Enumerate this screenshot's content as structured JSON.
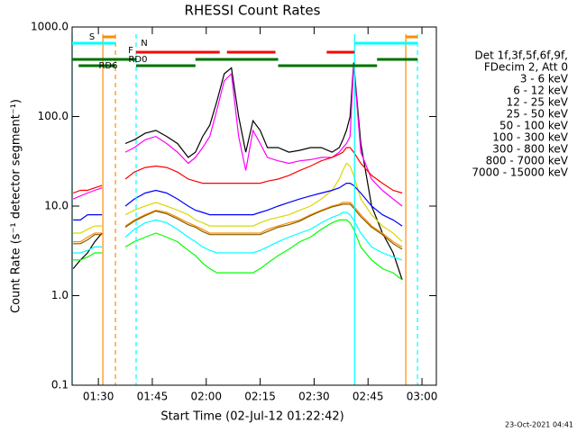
{
  "chart_data": {
    "type": "line",
    "title": "RHESSI Count Rates",
    "x_label": "Start Time (02-Jul-12 01:22:42)",
    "y_label": "Count Rate (s⁻¹ detector segment⁻¹)",
    "footer": "23-Oct-2021 04:41",
    "legend_header": [
      "Det 1f,3f,5f,6f,9f,",
      "FDecim 2, Att 0"
    ],
    "log_y": true,
    "xlim": [
      82.7,
      184
    ],
    "ylim": [
      0.1,
      1000
    ],
    "xticks": [
      {
        "value": 90,
        "label": "01:30"
      },
      {
        "value": 105,
        "label": "01:45"
      },
      {
        "value": 120,
        "label": "02:00"
      },
      {
        "value": 135,
        "label": "02:15"
      },
      {
        "value": 150,
        "label": "02:30"
      },
      {
        "value": 165,
        "label": "02:45"
      },
      {
        "value": 180,
        "label": "03:00"
      }
    ],
    "yticks": [
      0.1,
      {
        "value": 1,
        "label": "1.0"
      },
      {
        "value": 10,
        "label": "10.0"
      },
      {
        "value": 100,
        "label": "100.0"
      },
      {
        "value": 1000,
        "label": "1000.0"
      }
    ],
    "x": [
      83,
      85,
      87,
      89,
      91,
      93,
      97.5,
      100,
      103,
      106,
      109,
      112,
      115,
      117,
      119,
      121,
      123,
      125,
      127,
      129,
      131,
      133,
      135,
      137,
      140,
      143,
      146,
      149,
      152,
      155,
      157,
      158,
      159,
      160,
      161,
      163,
      166,
      169,
      172,
      174.5
    ],
    "series": [
      {
        "name": "3 - 6 keV",
        "color": "#000000",
        "values": [
          2,
          2.5,
          3,
          4,
          5,
          null,
          50,
          55,
          65,
          70,
          60,
          50,
          35,
          40,
          60,
          80,
          150,
          300,
          350,
          100,
          40,
          90,
          70,
          45,
          45,
          40,
          42,
          45,
          45,
          40,
          45,
          55,
          70,
          100,
          400,
          50,
          10,
          5,
          3,
          1.5
        ]
      },
      {
        "name": "6 - 12 keV",
        "color": "#ff00ff",
        "values": [
          12,
          13,
          14,
          15,
          16,
          null,
          40,
          45,
          55,
          60,
          50,
          40,
          30,
          35,
          45,
          60,
          120,
          250,
          300,
          60,
          25,
          70,
          50,
          35,
          32,
          30,
          32,
          33,
          35,
          35,
          40,
          45,
          50,
          60,
          380,
          40,
          20,
          15,
          12,
          10
        ]
      },
      {
        "name": "12 - 25 keV",
        "color": "#00ff00",
        "values": [
          2.5,
          2.5,
          2.7,
          3,
          3,
          null,
          3.5,
          4,
          4.5,
          5,
          4.5,
          4,
          3.2,
          2.8,
          2.3,
          2,
          1.8,
          1.8,
          1.8,
          1.8,
          1.8,
          1.8,
          2,
          2.3,
          2.8,
          3.3,
          4,
          4.5,
          5.5,
          6.5,
          7,
          7,
          7,
          6.5,
          5.5,
          3.5,
          2.5,
          2,
          1.8,
          1.5
        ]
      },
      {
        "name": "25 - 50 keV",
        "color": "#00ffff",
        "values": [
          3,
          3,
          3.2,
          3.5,
          3.5,
          null,
          4.5,
          5.5,
          6.5,
          7,
          6.5,
          5.5,
          4.5,
          4,
          3.5,
          3.2,
          3,
          3,
          3,
          3,
          3,
          3,
          3.2,
          3.5,
          4,
          4.5,
          5,
          5.5,
          6.5,
          7.5,
          8,
          8.5,
          8.5,
          8,
          7,
          5,
          3.5,
          3,
          2.7,
          2.5
        ]
      },
      {
        "name": "50 - 100 keV",
        "color": "#d8d800",
        "values": [
          5,
          5,
          5.5,
          6,
          6,
          null,
          8,
          9,
          10,
          11,
          10,
          9,
          8,
          7,
          6.5,
          6,
          6,
          6,
          6,
          6,
          6,
          6,
          6.5,
          7,
          7.5,
          8,
          9,
          10,
          12,
          15,
          20,
          25,
          30,
          28,
          22,
          12,
          8,
          6,
          5,
          4
        ]
      },
      {
        "name": "100 - 300 keV",
        "color": "#ff0000",
        "values": [
          14,
          15,
          15,
          16,
          17,
          null,
          20,
          24,
          27,
          28,
          27,
          24,
          20,
          19,
          18,
          18,
          18,
          18,
          18,
          18,
          18,
          18,
          18,
          19,
          20,
          22,
          25,
          28,
          32,
          35,
          38,
          40,
          45,
          45,
          40,
          30,
          22,
          18,
          15,
          14
        ]
      },
      {
        "name": "300 - 800 keV",
        "color": "#0000ff",
        "values": [
          7,
          7,
          8,
          8,
          8,
          null,
          10,
          12,
          14,
          15,
          14,
          12,
          10,
          9,
          8.5,
          8,
          8,
          8,
          8,
          8,
          8,
          8,
          8.5,
          9,
          10,
          11,
          12,
          13,
          14,
          15,
          16,
          17,
          18,
          18,
          17,
          14,
          10,
          8,
          7,
          6
        ]
      },
      {
        "name": "800 - 7000 keV",
        "color": "#ff8c00",
        "values": [
          4,
          4,
          4.5,
          5,
          5,
          null,
          6,
          7,
          8,
          9,
          8.5,
          7.5,
          6.5,
          6,
          5.5,
          5,
          5,
          5,
          5,
          5,
          5,
          5,
          5,
          5.5,
          6,
          6.5,
          7,
          8,
          9,
          10,
          10.5,
          11,
          11,
          11,
          10,
          8,
          6,
          5,
          4,
          3.5
        ]
      },
      {
        "name": "7000 - 15000 keV",
        "color": "#7f5f00",
        "values": [
          3.8,
          3.8,
          4.2,
          4.8,
          4.8,
          null,
          5.8,
          6.8,
          7.8,
          8.8,
          8.2,
          7.2,
          6.2,
          5.8,
          5.2,
          4.8,
          4.8,
          4.8,
          4.8,
          4.8,
          4.8,
          4.8,
          4.8,
          5.2,
          5.8,
          6.2,
          6.8,
          7.8,
          8.8,
          9.8,
          10.2,
          10.5,
          10.5,
          10.5,
          9.5,
          7.6,
          5.8,
          4.8,
          3.8,
          3.3
        ]
      }
    ],
    "markers": [
      {
        "x": 82.7,
        "color": "#00ffff",
        "dashed": false
      },
      {
        "x": 91.25,
        "color": "#ff8c00",
        "dashed": false
      },
      {
        "x": 94.75,
        "color": "#ff8c00",
        "dashed": true
      },
      {
        "x": 100.5,
        "color": "#00ffff",
        "dashed": true
      },
      {
        "x": 161.25,
        "color": "#00ffff",
        "dashed": false
      },
      {
        "x": 175.5,
        "color": "#ff8c00",
        "dashed": false
      },
      {
        "x": 178.75,
        "color": "#00ffff",
        "dashed": true
      }
    ],
    "flags": [
      {
        "name": "S",
        "color": "#ff8c00",
        "intervals": [
          [
            91.25,
            94.75
          ],
          [
            175.5,
            178.75
          ]
        ]
      },
      {
        "name": "N",
        "color": "#00ffff",
        "intervals": [
          [
            82.7,
            94.75
          ],
          [
            161.25,
            178.75
          ]
        ]
      },
      {
        "name": "F",
        "color": "#ff0000",
        "intervals": [
          [
            100.5,
            123.75
          ],
          [
            125.75,
            139.25
          ],
          [
            153.5,
            161.25
          ]
        ]
      },
      {
        "name": "RD0",
        "color": "#007000",
        "intervals": [
          [
            82.7,
            100.5
          ],
          [
            117,
            140
          ],
          [
            167.5,
            178.75
          ]
        ]
      },
      {
        "name": "RD6",
        "color": "#007000",
        "intervals": [
          [
            84.5,
            94.75
          ],
          [
            100.5,
            117
          ],
          [
            140,
            167.5
          ]
        ]
      }
    ]
  }
}
